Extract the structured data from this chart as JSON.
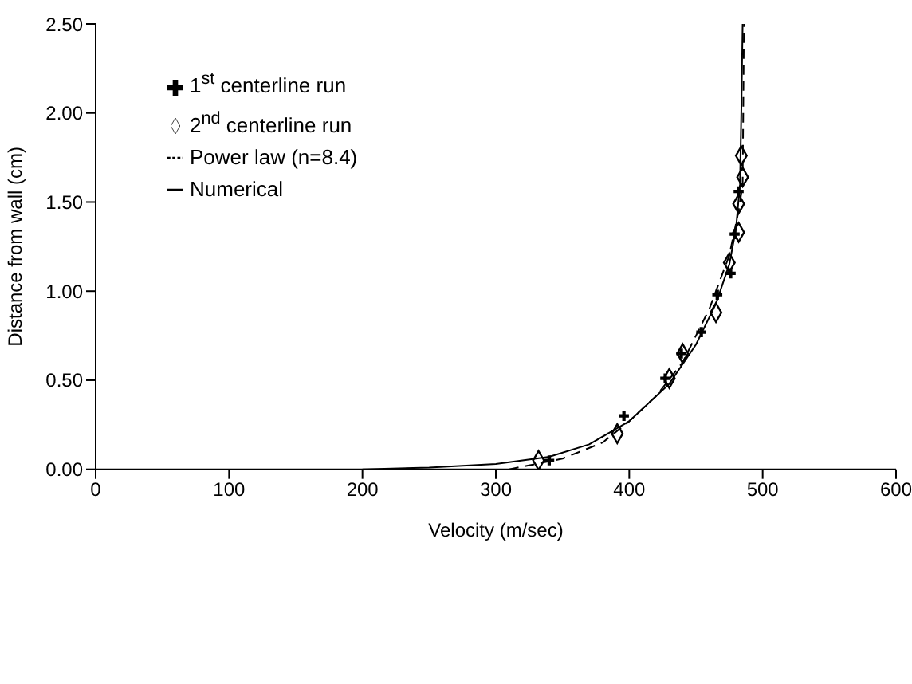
{
  "chart_data": {
    "type": "scatter",
    "xlabel": "Velocity (m/sec)",
    "ylabel": "Distance from wall (cm)",
    "xlim": [
      0,
      600
    ],
    "xticks": [
      0,
      100,
      200,
      300,
      400,
      500,
      600
    ],
    "ylim": [
      0,
      2.5
    ],
    "yticks": [
      {
        "value": 0,
        "label": "0.00"
      },
      {
        "value": 0.5,
        "label": "0.50"
      },
      {
        "value": 1,
        "label": "1.00"
      },
      {
        "value": 1.5,
        "label": "1.50"
      },
      {
        "value": 2,
        "label": "2.00"
      },
      {
        "value": 2.5,
        "label": "2.50"
      }
    ],
    "legend": "top left",
    "series": [
      {
        "name": "1$^{st}$ centerline run",
        "marker": "cross",
        "color": "#000000",
        "x": [
          340,
          396,
          427,
          439,
          454,
          466,
          476,
          479,
          482
        ],
        "values": [
          0.05,
          0.3,
          0.51,
          0.65,
          0.77,
          0.98,
          1.1,
          1.32,
          1.56
        ]
      },
      {
        "name": "2$^{nd}$ centerline run",
        "marker": "diamond",
        "color": "#000000",
        "x": [
          332,
          391,
          430,
          440,
          465,
          475,
          482,
          482,
          485,
          484
        ],
        "values": [
          0.05,
          0.2,
          0.51,
          0.65,
          0.88,
          1.16,
          1.33,
          1.49,
          1.64,
          1.76
        ]
      },
      {
        "name": "Power law (n=8.4)",
        "type": "line",
        "line_style": "dashed",
        "color": "#000000",
        "x": [
          310,
          350,
          380,
          400,
          420,
          440,
          460,
          475,
          482,
          485,
          486
        ],
        "values": [
          0,
          0.06,
          0.15,
          0.27,
          0.41,
          0.6,
          0.9,
          1.2,
          1.45,
          1.6,
          2.5
        ]
      },
      {
        "name": "Numerical",
        "type": "line",
        "line_style": "solid",
        "color": "#000000",
        "x": [
          200,
          250,
          300,
          340,
          370,
          400,
          430,
          450,
          465,
          475,
          480,
          483,
          484,
          485
        ],
        "values": [
          0,
          0.01,
          0.03,
          0.07,
          0.14,
          0.27,
          0.48,
          0.7,
          0.93,
          1.15,
          1.35,
          1.6,
          2,
          2.5
        ]
      }
    ]
  }
}
